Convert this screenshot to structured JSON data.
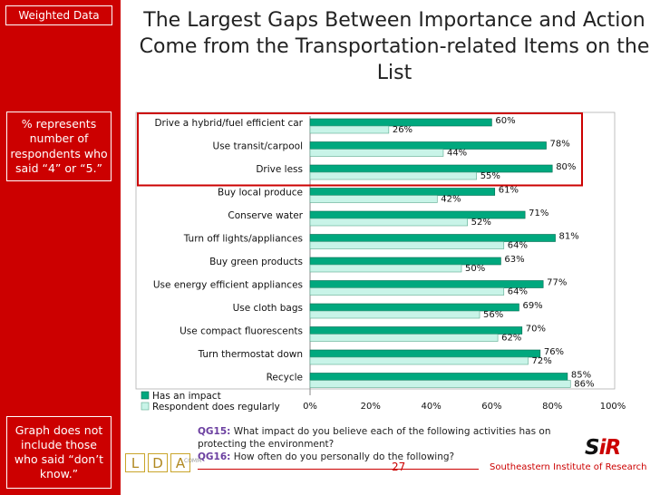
{
  "sidebar": {
    "tag": "Weighted Data",
    "note_top": "% represents number of respondents who said “4” or “5.”",
    "note_bottom": "Graph does not include those who said “don’t know.”"
  },
  "title": "The Largest Gaps Between Importance and Action Come from the Transportation-related Items on the List",
  "footer": {
    "q1_id": "QG15:",
    "q1_text": "What impact do you believe each of the following activities has on protecting the environment?",
    "q2_id": "QG16:",
    "q2_text": "How often do you personally do the following?",
    "page": "27",
    "org": "Southeastern Institute of Research",
    "logo_letters": [
      "L",
      "D",
      "A"
    ],
    "logo_sub": "COMM"
  },
  "colors": {
    "brand_red": "#cc0000",
    "impact": "#00a87e",
    "regularly": "#c8f4e8",
    "highlight": "#cc0000"
  },
  "chart_data": {
    "type": "bar",
    "orientation": "horizontal",
    "categories": [
      "Drive a hybrid/fuel efficient car",
      "Use transit/carpool",
      "Drive less",
      "Buy local produce",
      "Conserve water",
      "Turn off lights/appliances",
      "Buy green products",
      "Use energy efficient appliances",
      "Use cloth bags",
      "Use compact fluorescents",
      "Turn thermostat down",
      "Recycle"
    ],
    "series": [
      {
        "name": "Has an impact",
        "values": [
          60,
          78,
          80,
          61,
          71,
          81,
          63,
          77,
          69,
          70,
          76,
          85
        ]
      },
      {
        "name": "Respondent does regularly",
        "values": [
          26,
          44,
          55,
          42,
          52,
          64,
          50,
          64,
          56,
          62,
          72,
          86
        ]
      }
    ],
    "x_ticks": [
      "0%",
      "20%",
      "40%",
      "60%",
      "80%",
      "100%"
    ],
    "xlim": [
      0,
      100
    ],
    "value_suffix": "%",
    "highlighted_categories": [
      "Drive a hybrid/fuel efficient car",
      "Use transit/carpool",
      "Drive less"
    ],
    "legend_position": "bottom-left"
  }
}
